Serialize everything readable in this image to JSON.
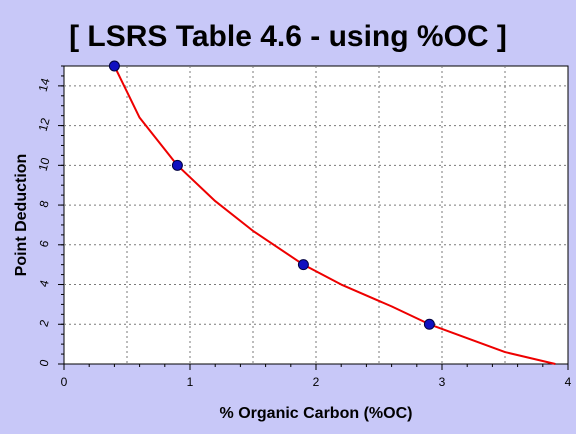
{
  "chart_data": {
    "type": "line",
    "title": "[ LSRS Table 4.6 - using %OC ]",
    "xlabel": "% Organic Carbon (%OC)",
    "ylabel": "Point Deduction",
    "xlim": [
      0,
      4
    ],
    "ylim": [
      0,
      15
    ],
    "x_ticks": [
      0,
      1,
      2,
      3,
      4
    ],
    "y_ticks": [
      0,
      2,
      4,
      6,
      8,
      10,
      12,
      14
    ],
    "grid": true,
    "series": [
      {
        "kind": "curve",
        "color": "#ee0000",
        "x": [
          0.4,
          0.6,
          0.9,
          1.2,
          1.5,
          1.9,
          2.2,
          2.6,
          2.9,
          3.2,
          3.5,
          3.9
        ],
        "values": [
          15,
          12.4,
          10,
          8.2,
          6.7,
          5,
          4,
          2.9,
          2,
          1.3,
          0.6,
          0
        ]
      },
      {
        "kind": "points",
        "color": "#1010c0",
        "x": [
          0.4,
          0.9,
          1.9,
          2.9
        ],
        "values": [
          15,
          10,
          5,
          2
        ]
      }
    ],
    "colors": {
      "background": "#c8c8f8",
      "plot_area": "#ffffff",
      "grid": "#7a7a7a",
      "curve": "#ee0000",
      "markers": "#1010c0"
    }
  }
}
